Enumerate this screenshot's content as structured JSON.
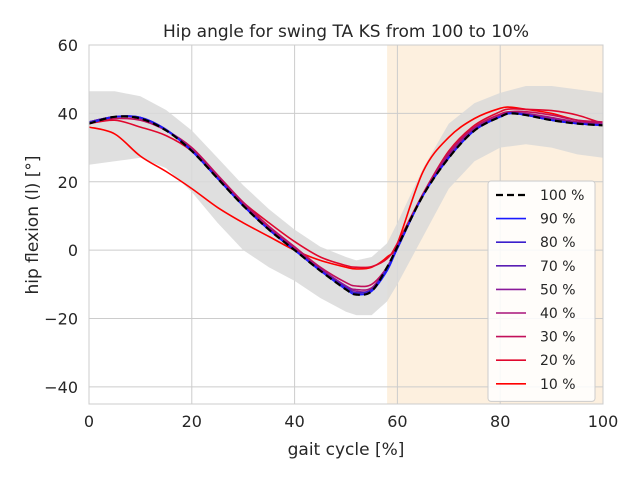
{
  "chart_data": {
    "type": "line",
    "title": "Hip angle for swing TA KS from 100 to 10%",
    "xlabel": "gait cycle [%]",
    "ylabel": "hip flexion (l) [°]",
    "xlim": [
      0,
      100
    ],
    "ylim": [
      -45,
      60
    ],
    "x_ticks": [
      0,
      20,
      40,
      60,
      80,
      100
    ],
    "y_ticks": [
      -40,
      -20,
      0,
      20,
      40,
      60
    ],
    "grid": true,
    "legend_position": "lower-right",
    "shaded_region": {
      "x_start": 58,
      "x_end": 100,
      "color": "#fdf0df"
    },
    "band": {
      "color": "#d9d9d9",
      "x": [
        0,
        5,
        10,
        15,
        20,
        25,
        30,
        35,
        40,
        45,
        50,
        52,
        55,
        58,
        60,
        65,
        70,
        75,
        80,
        85,
        90,
        95,
        100
      ],
      "upper": [
        46.5,
        46.5,
        45,
        41,
        35,
        27,
        19,
        12,
        6,
        1,
        -2,
        -3,
        -2,
        2,
        8,
        24,
        37,
        43,
        46,
        48,
        48,
        47,
        46
      ],
      "lower": [
        25,
        26,
        27,
        24,
        17,
        8,
        0,
        -5,
        -9,
        -14,
        -18,
        -19,
        -19,
        -15,
        -10,
        4,
        18,
        26,
        30,
        31,
        30,
        28,
        27
      ]
    },
    "x": [
      0,
      5,
      10,
      15,
      20,
      25,
      30,
      35,
      40,
      45,
      50,
      52,
      55,
      58,
      60,
      65,
      70,
      75,
      80,
      82,
      85,
      90,
      95,
      100
    ],
    "series": [
      {
        "name": "100 %",
        "color": "#000000",
        "dashed": true,
        "values": [
          37,
          39,
          38.5,
          35,
          29,
          21,
          13,
          6,
          0,
          -6,
          -11.5,
          -13,
          -12,
          -5,
          1,
          16,
          27,
          35,
          39,
          40,
          39.5,
          38,
          37,
          36.5
        ]
      },
      {
        "name": "90 %",
        "color": "#1a1aff",
        "values": [
          37,
          39,
          38.8,
          35.2,
          29,
          21,
          13,
          6,
          0,
          -6,
          -11.5,
          -13,
          -12,
          -6,
          0.5,
          16,
          27,
          35,
          39,
          40,
          39.5,
          38,
          37,
          36.5
        ]
      },
      {
        "name": "80 %",
        "color": "#3b1fcc",
        "values": [
          37.5,
          39,
          38.8,
          35.3,
          29.2,
          21,
          13,
          6,
          0,
          -6,
          -11,
          -12.5,
          -11.5,
          -5.5,
          0.5,
          16,
          27,
          35,
          39,
          40,
          39.5,
          38,
          37,
          36.5
        ]
      },
      {
        "name": "70 %",
        "color": "#5a1fb4",
        "values": [
          37.3,
          39,
          38.8,
          35.3,
          29,
          21,
          13,
          6,
          0,
          -6,
          -11,
          -12.5,
          -11.5,
          -5.5,
          0.5,
          16,
          27,
          35,
          39,
          40.2,
          39.7,
          38,
          37,
          36.5
        ]
      },
      {
        "name": "50 %",
        "color": "#8a1a9a",
        "values": [
          37.5,
          39,
          38.5,
          35,
          29,
          21,
          13,
          6,
          0,
          -5.5,
          -10.5,
          -12,
          -11.5,
          -5,
          1,
          16,
          27.5,
          35.5,
          39.3,
          40.2,
          39.7,
          38.5,
          37.2,
          36.8
        ]
      },
      {
        "name": "40 %",
        "color": "#a8157a",
        "values": [
          37.5,
          39,
          38.5,
          35,
          29.5,
          21.5,
          13.5,
          6.5,
          0.5,
          -5.5,
          -10.5,
          -11.5,
          -11,
          -5,
          1,
          16,
          28,
          35.5,
          39.3,
          40.2,
          40,
          38.8,
          37.5,
          37
        ]
      },
      {
        "name": "30 %",
        "color": "#c2105a",
        "values": [
          37.5,
          38.5,
          38,
          35,
          30,
          22,
          14,
          7,
          1,
          -5,
          -9.5,
          -10.5,
          -10,
          -5,
          1,
          16.5,
          28.5,
          36,
          39.8,
          40.5,
          40.5,
          39.5,
          38,
          37.5
        ]
      },
      {
        "name": "20 %",
        "color": "#e0082e",
        "values": [
          37,
          38,
          36,
          33.5,
          29,
          21.5,
          14,
          8,
          2.5,
          -2,
          -4.5,
          -5,
          -4.8,
          -2.5,
          2,
          16.5,
          29,
          36.5,
          40.5,
          41.3,
          41.2,
          40.8,
          39.5,
          37
        ]
      },
      {
        "name": "10 %",
        "color": "#ff0000",
        "values": [
          36,
          34,
          27.5,
          23,
          18,
          12.5,
          8,
          4,
          0,
          -3,
          -5,
          -5.5,
          -5,
          -2,
          2,
          23,
          33,
          38.5,
          41.5,
          41.8,
          41.2,
          40,
          38,
          37
        ]
      }
    ]
  }
}
